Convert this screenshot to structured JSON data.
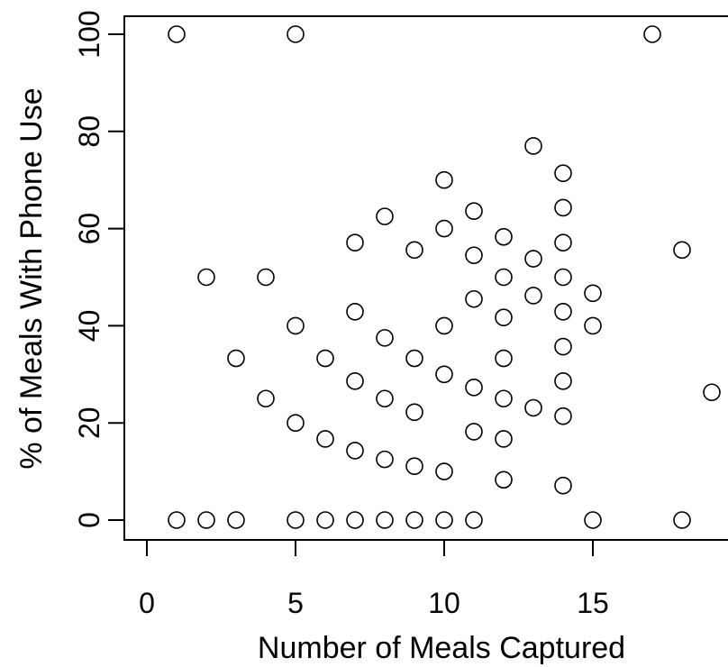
{
  "chart_data": {
    "type": "scatter",
    "title": "",
    "xlabel": "Number of Meals Captured",
    "ylabel": "% of Meals With Phone Use",
    "xlim": [
      0,
      19
    ],
    "ylim": [
      0,
      100
    ],
    "xticks": [
      0,
      5,
      10,
      15
    ],
    "yticks": [
      0,
      20,
      40,
      60,
      80,
      100
    ],
    "grid": false,
    "marker": "open-circle",
    "marker_color": "#000000",
    "points": [
      {
        "x": 1,
        "y": 100
      },
      {
        "x": 5,
        "y": 100
      },
      {
        "x": 17,
        "y": 100
      },
      {
        "x": 13,
        "y": 77
      },
      {
        "x": 14,
        "y": 71.4
      },
      {
        "x": 10,
        "y": 70
      },
      {
        "x": 14,
        "y": 64.3
      },
      {
        "x": 11,
        "y": 63.6
      },
      {
        "x": 8,
        "y": 62.5
      },
      {
        "x": 10,
        "y": 60
      },
      {
        "x": 12,
        "y": 58.3
      },
      {
        "x": 7,
        "y": 57.1
      },
      {
        "x": 14,
        "y": 57.1
      },
      {
        "x": 9,
        "y": 55.6
      },
      {
        "x": 18,
        "y": 55.6
      },
      {
        "x": 11,
        "y": 54.5
      },
      {
        "x": 13,
        "y": 53.8
      },
      {
        "x": 2,
        "y": 50
      },
      {
        "x": 4,
        "y": 50
      },
      {
        "x": 12,
        "y": 50
      },
      {
        "x": 14,
        "y": 50
      },
      {
        "x": 15,
        "y": 46.7
      },
      {
        "x": 13,
        "y": 46.2
      },
      {
        "x": 11,
        "y": 45.5
      },
      {
        "x": 7,
        "y": 42.9
      },
      {
        "x": 14,
        "y": 42.9
      },
      {
        "x": 12,
        "y": 41.7
      },
      {
        "x": 5,
        "y": 40
      },
      {
        "x": 10,
        "y": 40
      },
      {
        "x": 15,
        "y": 40
      },
      {
        "x": 8,
        "y": 37.5
      },
      {
        "x": 14,
        "y": 35.7
      },
      {
        "x": 3,
        "y": 33.3
      },
      {
        "x": 6,
        "y": 33.3
      },
      {
        "x": 9,
        "y": 33.3
      },
      {
        "x": 12,
        "y": 33.3
      },
      {
        "x": 10,
        "y": 30
      },
      {
        "x": 7,
        "y": 28.6
      },
      {
        "x": 14,
        "y": 28.6
      },
      {
        "x": 11,
        "y": 27.3
      },
      {
        "x": 19,
        "y": 26.3
      },
      {
        "x": 4,
        "y": 25
      },
      {
        "x": 8,
        "y": 25
      },
      {
        "x": 12,
        "y": 25
      },
      {
        "x": 13,
        "y": 23.1
      },
      {
        "x": 9,
        "y": 22.2
      },
      {
        "x": 14,
        "y": 21.4
      },
      {
        "x": 5,
        "y": 20
      },
      {
        "x": 11,
        "y": 18.2
      },
      {
        "x": 6,
        "y": 16.7
      },
      {
        "x": 12,
        "y": 16.7
      },
      {
        "x": 7,
        "y": 14.3
      },
      {
        "x": 8,
        "y": 12.5
      },
      {
        "x": 9,
        "y": 11.1
      },
      {
        "x": 10,
        "y": 10
      },
      {
        "x": 12,
        "y": 8.3
      },
      {
        "x": 14,
        "y": 7.1
      },
      {
        "x": 1,
        "y": 0
      },
      {
        "x": 2,
        "y": 0
      },
      {
        "x": 3,
        "y": 0
      },
      {
        "x": 5,
        "y": 0
      },
      {
        "x": 6,
        "y": 0
      },
      {
        "x": 7,
        "y": 0
      },
      {
        "x": 8,
        "y": 0
      },
      {
        "x": 9,
        "y": 0
      },
      {
        "x": 10,
        "y": 0
      },
      {
        "x": 11,
        "y": 0
      },
      {
        "x": 15,
        "y": 0
      },
      {
        "x": 18,
        "y": 0
      }
    ]
  }
}
